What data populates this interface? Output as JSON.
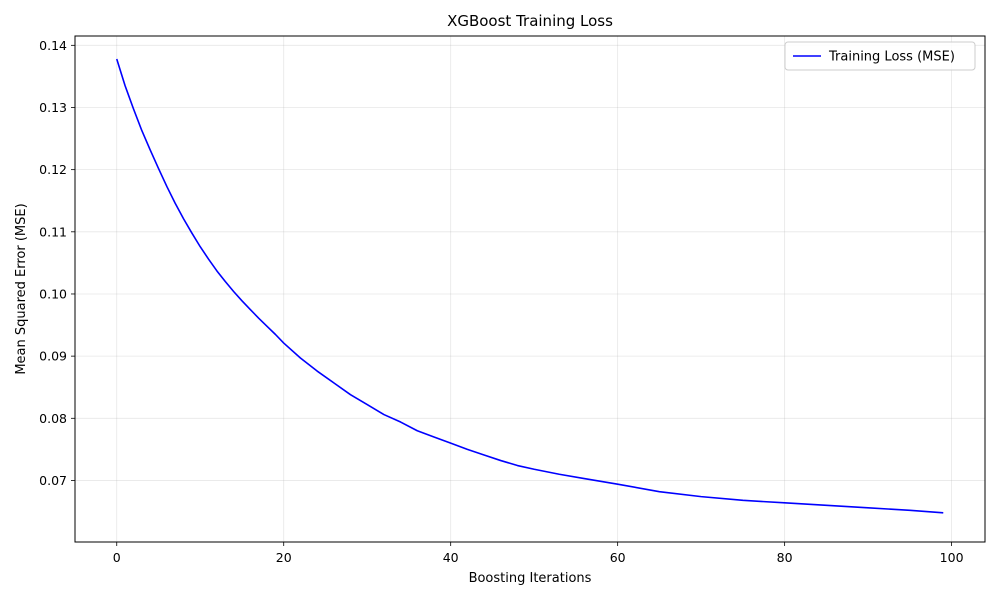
{
  "chart_data": {
    "type": "line",
    "title": "XGBoost Training Loss",
    "xlabel": "Boosting Iterations",
    "ylabel": "Mean Squared Error (MSE)",
    "xlim": [
      -5,
      104
    ],
    "ylim": [
      0.0601,
      0.1415
    ],
    "x_ticks": [
      0,
      20,
      40,
      60,
      80,
      100
    ],
    "x_tick_labels": [
      "0",
      "20",
      "40",
      "60",
      "80",
      "100"
    ],
    "y_ticks": [
      0.07,
      0.08,
      0.09,
      0.1,
      0.11,
      0.12,
      0.13,
      0.14
    ],
    "y_tick_labels": [
      "0.07",
      "0.08",
      "0.09",
      "0.10",
      "0.11",
      "0.12",
      "0.13",
      "0.14"
    ],
    "grid": true,
    "legend_position": "top-right",
    "series": [
      {
        "name": "Training Loss (MSE)",
        "color": "#0000ff",
        "x": [
          0,
          1,
          2,
          3,
          4,
          5,
          6,
          7,
          8,
          9,
          10,
          11,
          12,
          13,
          14,
          15,
          16,
          17,
          18,
          19,
          20,
          22,
          24,
          26,
          28,
          30,
          32,
          34,
          36,
          38,
          40,
          42,
          44,
          46,
          48,
          50,
          53,
          56,
          60,
          65,
          70,
          75,
          80,
          85,
          90,
          95,
          99
        ],
        "values": [
          0.1378,
          0.1335,
          0.1298,
          0.1263,
          0.1232,
          0.1202,
          0.1173,
          0.1146,
          0.1121,
          0.1098,
          0.1076,
          0.1056,
          0.1037,
          0.102,
          0.1004,
          0.0989,
          0.0975,
          0.0961,
          0.0948,
          0.0935,
          0.0921,
          0.0897,
          0.0876,
          0.0857,
          0.0838,
          0.0822,
          0.0806,
          0.0794,
          0.078,
          0.077,
          0.076,
          0.075,
          0.0741,
          0.0732,
          0.0724,
          0.0718,
          0.071,
          0.0703,
          0.0694,
          0.0682,
          0.0674,
          0.0668,
          0.0664,
          0.066,
          0.0656,
          0.0652,
          0.0648
        ]
      }
    ]
  }
}
